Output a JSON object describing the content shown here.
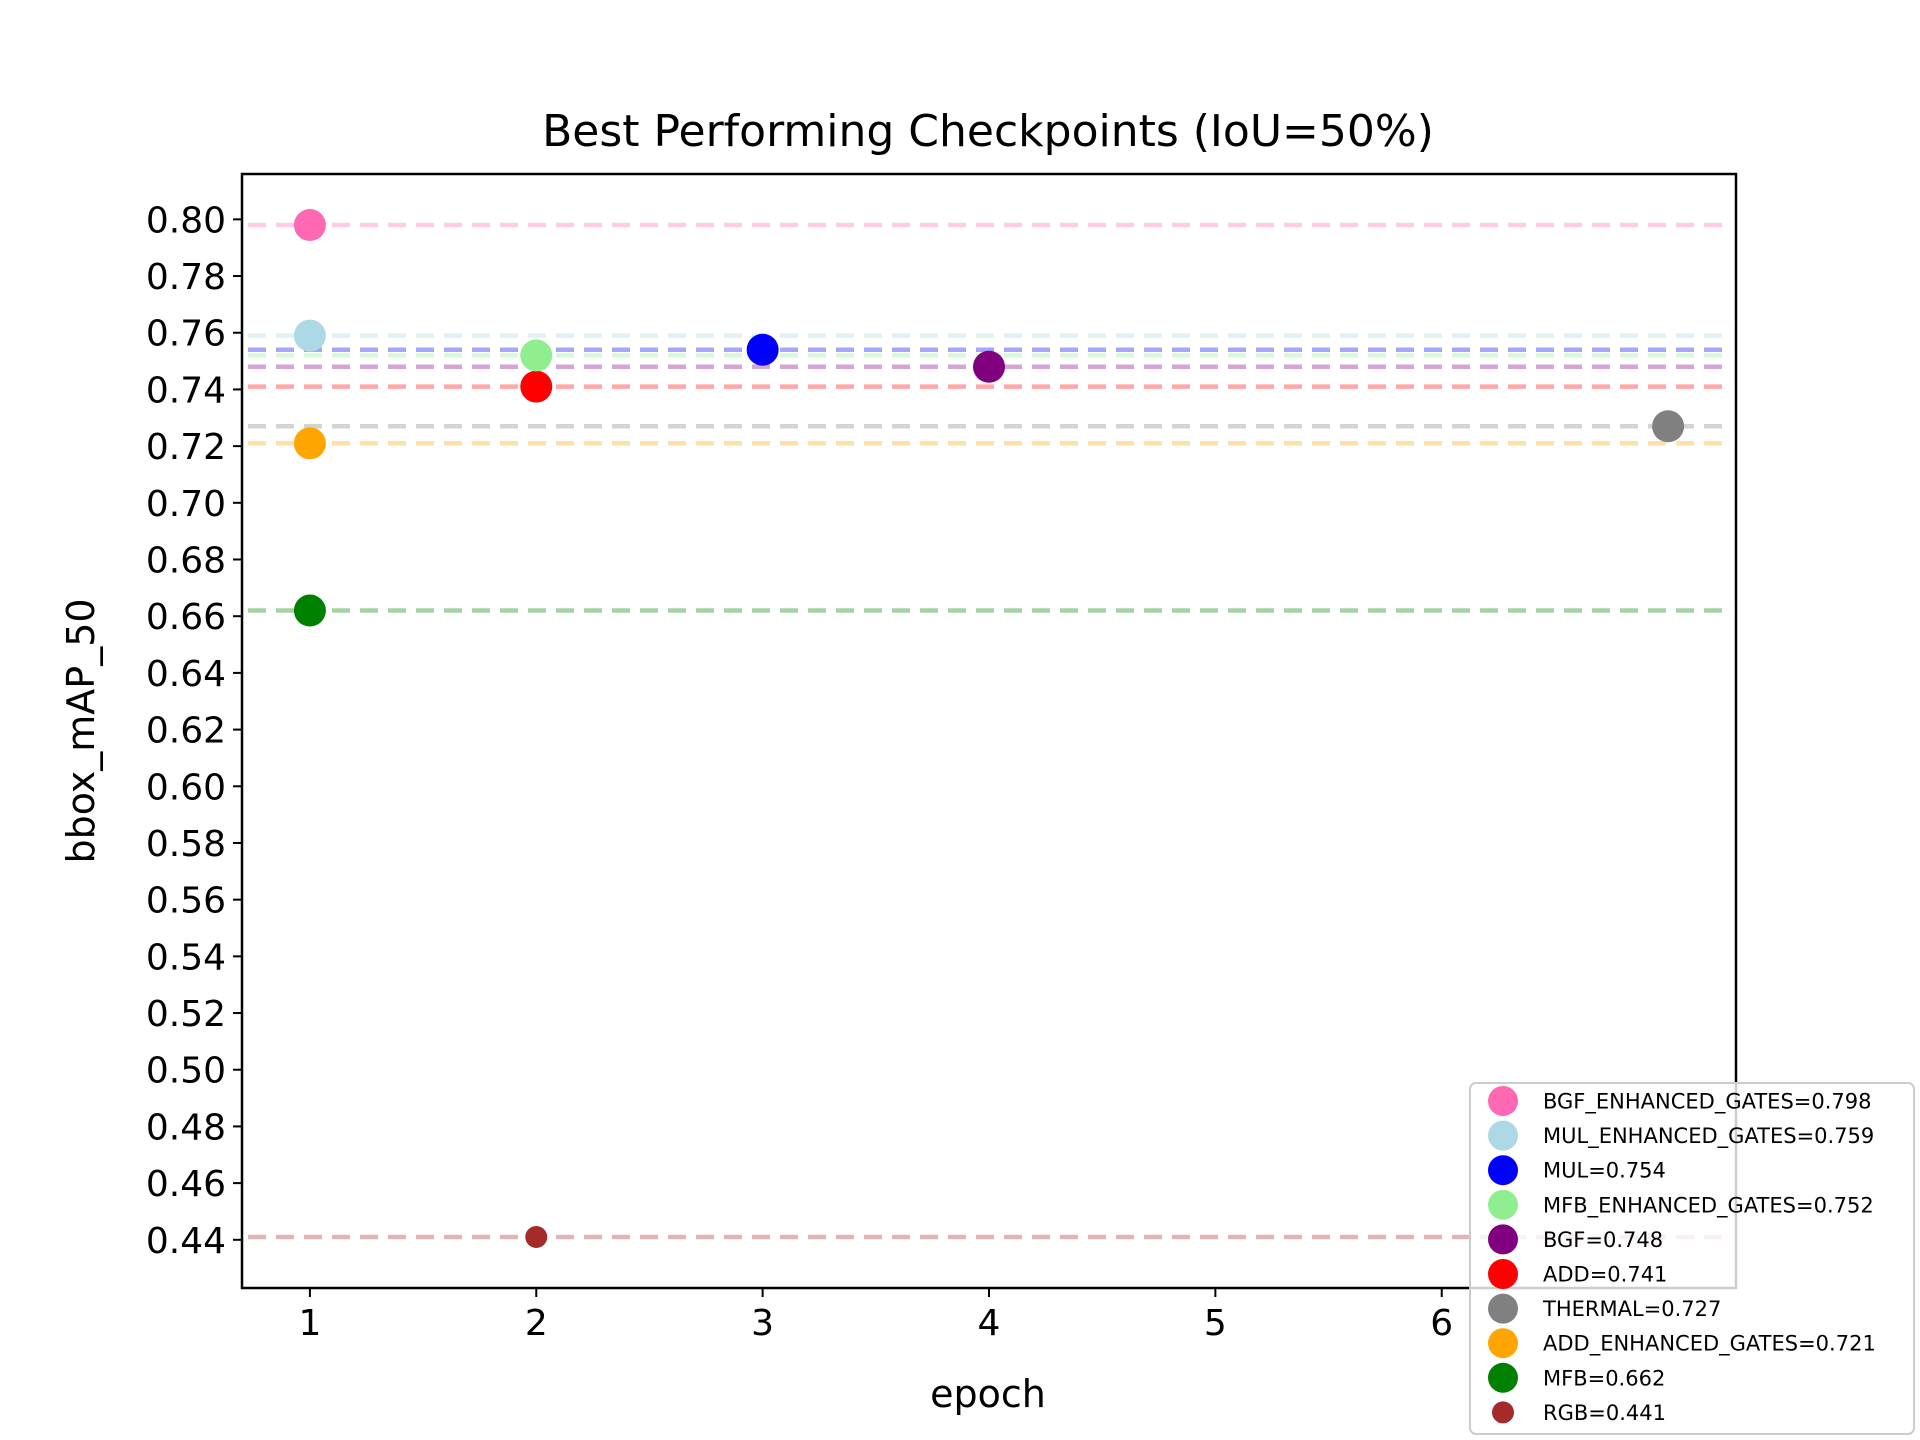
{
  "chart_data": {
    "type": "scatter",
    "title": "Best Performing Checkpoints (IoU=50%)",
    "xlabel": "epoch",
    "ylabel": "bbox_mAP_50",
    "xlim": [
      0.7,
      7.3
    ],
    "ylim": [
      0.423,
      0.816
    ],
    "xticks": [
      1,
      2,
      3,
      4,
      5,
      6
    ],
    "yticks": [
      0.44,
      0.46,
      0.48,
      0.5,
      0.52,
      0.54,
      0.56,
      0.58,
      0.6,
      0.62,
      0.64,
      0.66,
      0.68,
      0.7,
      0.72,
      0.74,
      0.76,
      0.78,
      0.8
    ],
    "grid": false,
    "legend_position": "bottom-right",
    "reference_lines": "dashed horizontal line at each series value",
    "series": [
      {
        "name": "BGF_ENHANCED_GATES=0.798",
        "x": 1,
        "y": 0.798,
        "color": "#ff69b4",
        "marker_size": "large"
      },
      {
        "name": "MUL_ENHANCED_GATES=0.759",
        "x": 1,
        "y": 0.759,
        "color": "#add8e6",
        "marker_size": "large"
      },
      {
        "name": "MUL=0.754",
        "x": 3,
        "y": 0.754,
        "color": "#0000ff",
        "marker_size": "large"
      },
      {
        "name": "MFB_ENHANCED_GATES=0.752",
        "x": 2,
        "y": 0.752,
        "color": "#90ee90",
        "marker_size": "large"
      },
      {
        "name": "BGF=0.748",
        "x": 4,
        "y": 0.748,
        "color": "#800080",
        "marker_size": "large"
      },
      {
        "name": "ADD=0.741",
        "x": 2,
        "y": 0.741,
        "color": "#ff0000",
        "marker_size": "large"
      },
      {
        "name": "THERMAL=0.727",
        "x": 7,
        "y": 0.727,
        "color": "#808080",
        "marker_size": "large"
      },
      {
        "name": "ADD_ENHANCED_GATES=0.721",
        "x": 1,
        "y": 0.721,
        "color": "#ffa500",
        "marker_size": "large"
      },
      {
        "name": "MFB=0.662",
        "x": 1,
        "y": 0.662,
        "color": "#008000",
        "marker_size": "large"
      },
      {
        "name": "RGB=0.441",
        "x": 2,
        "y": 0.441,
        "color": "#a52a2a",
        "marker_size": "small"
      }
    ]
  }
}
